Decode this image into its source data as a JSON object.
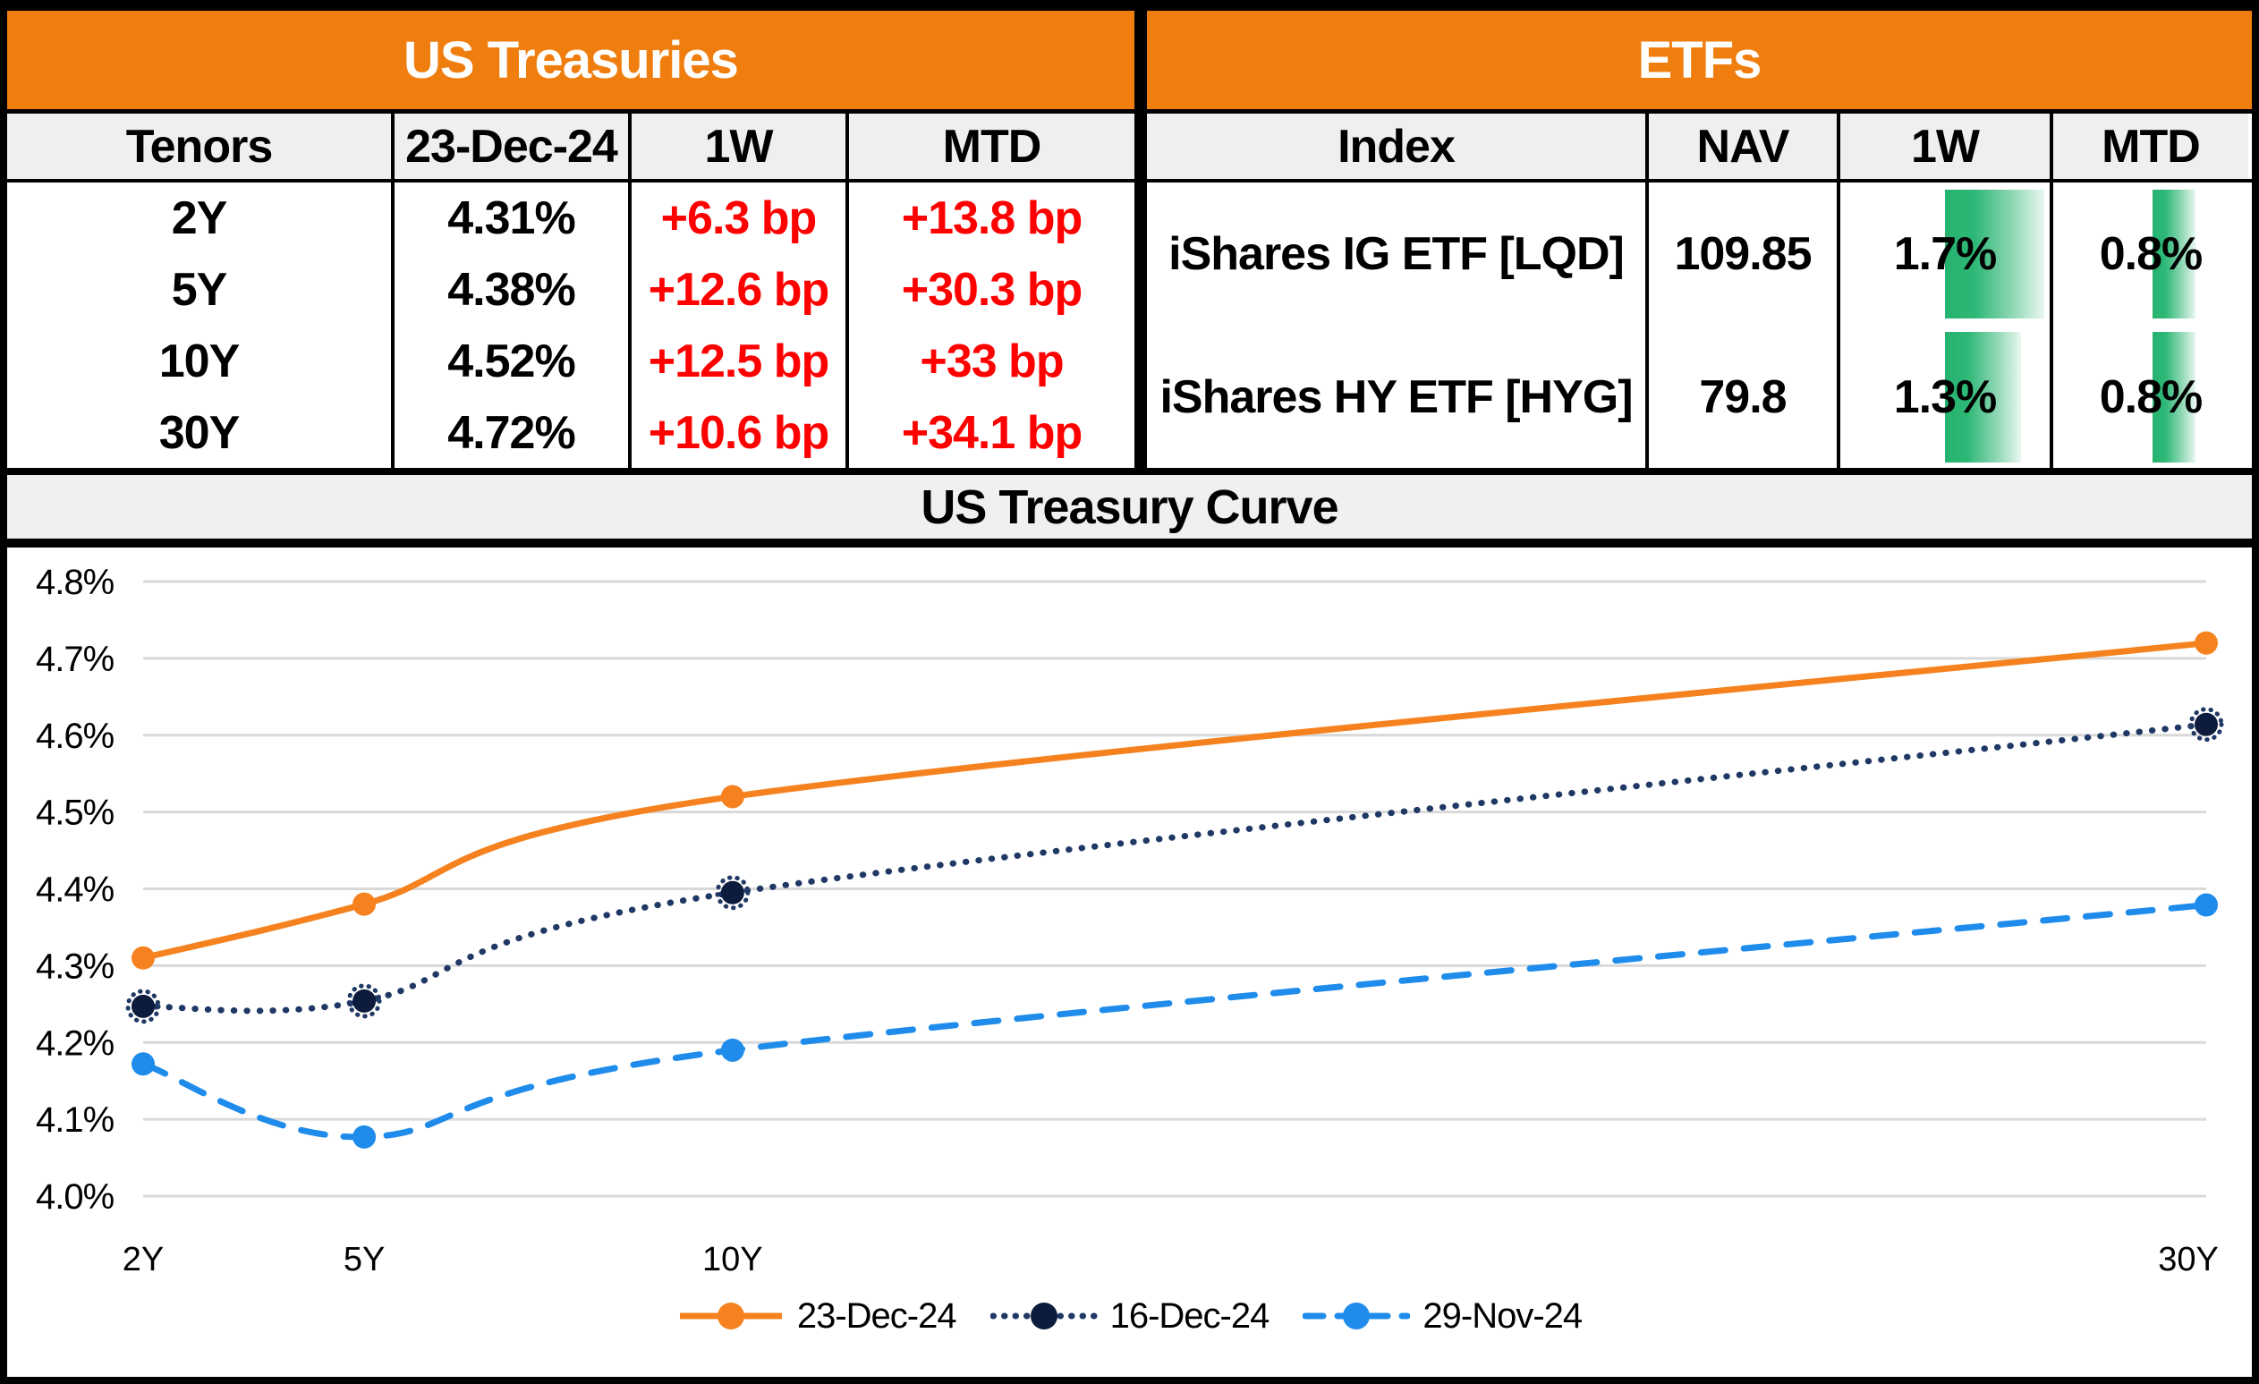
{
  "us_treasuries": {
    "title": "US Treasuries",
    "columns": {
      "c0": "Tenors",
      "c1": "23-Dec-24",
      "c2": "1W",
      "c3": "MTD"
    },
    "rows": [
      {
        "tenor": "2Y",
        "yield": "4.31%",
        "w1": "+6.3 bp",
        "mtd": "+13.8 bp"
      },
      {
        "tenor": "5Y",
        "yield": "4.38%",
        "w1": "+12.6 bp",
        "mtd": "+30.3 bp"
      },
      {
        "tenor": "10Y",
        "yield": "4.52%",
        "w1": "+12.5 bp",
        "mtd": "+33 bp"
      },
      {
        "tenor": "30Y",
        "yield": "4.72%",
        "w1": "+10.6 bp",
        "mtd": "+34.1 bp"
      }
    ]
  },
  "etfs": {
    "title": "ETFs",
    "columns": {
      "c0": "Index",
      "c1": "NAV",
      "c2": "1W",
      "c3": "MTD"
    },
    "bar_max": 1.8,
    "rows": [
      {
        "index": "iShares IG ETF [LQD]",
        "nav": "109.85",
        "w1": "1.7%",
        "w1_value": 1.7,
        "mtd": "0.8%",
        "mtd_value": 0.8
      },
      {
        "index": "iShares HY ETF [HYG]",
        "nav": "79.8",
        "w1": "1.3%",
        "w1_value": 1.3,
        "mtd": "0.8%",
        "mtd_value": 0.8
      }
    ]
  },
  "chart_data": {
    "type": "line",
    "title": "US Treasury Curve",
    "x_years": [
      2,
      5,
      10,
      30
    ],
    "x_labels": [
      "2Y",
      "5Y",
      "10Y",
      "30Y"
    ],
    "ylim": [
      4.0,
      4.8
    ],
    "ytick_step": 0.1,
    "ytick_labels": [
      "4.0%",
      "4.1%",
      "4.2%",
      "4.3%",
      "4.4%",
      "4.5%",
      "4.6%",
      "4.7%",
      "4.8%"
    ],
    "grid": true,
    "legend_position": "bottom",
    "series": [
      {
        "name": "23-Dec-24",
        "values": [
          4.31,
          4.38,
          4.52,
          4.72
        ],
        "color": "#F5821F",
        "style": "solid",
        "marker": "circle"
      },
      {
        "name": "16-Dec-24",
        "values": [
          4.247,
          4.254,
          4.395,
          4.614
        ],
        "color": "#1F3864",
        "marker_fill": "#0D1B3C",
        "style": "dotted",
        "marker": "circle",
        "marker_ring": true
      },
      {
        "name": "29-Nov-24",
        "values": [
          4.172,
          4.077,
          4.19,
          4.379
        ],
        "color": "#1F8CEB",
        "style": "dashed",
        "marker": "circle"
      }
    ]
  },
  "colors": {
    "header_orange": "#F07E0E",
    "negative_red": "#FE0000",
    "databar_green": "#26B26F",
    "gridline_gray": "#D9D9D9",
    "band_gray": "#F0F0F0"
  }
}
